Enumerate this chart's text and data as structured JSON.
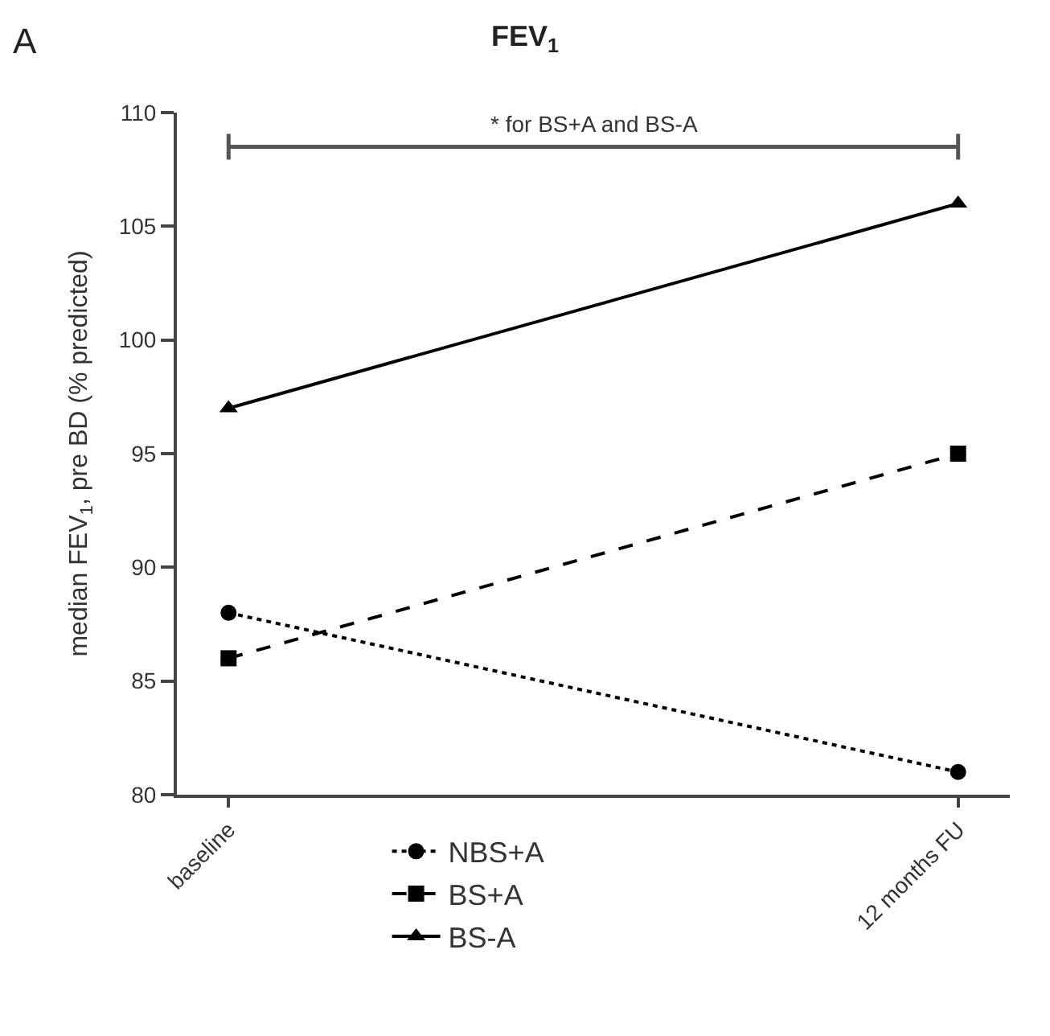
{
  "chart_data": {
    "type": "line",
    "title": "FEV$_{1}$",
    "ylabel": "median FEV$_{1}$, pre BD (% predicted)",
    "annotations": [
      "A"
    ],
    "ref_lines": [
      {
        "axis": "y",
        "value": 108.5,
        "label": "* for BS+A and BS-A",
        "color": "#555555"
      }
    ],
    "categories": [
      "baseline",
      "12 months FU"
    ],
    "series": [
      {
        "name": "NBS+A",
        "color": "#000000",
        "values": [
          88,
          81
        ],
        "marker": "circle",
        "line_style": "dotted"
      },
      {
        "name": "BS+A",
        "color": "#000000",
        "values": [
          86,
          95
        ],
        "marker": "square",
        "line_style": "dashed"
      },
      {
        "name": "BS-A",
        "color": "#000000",
        "values": [
          97,
          106
        ],
        "marker": "triangle",
        "line_style": "solid"
      }
    ],
    "ylim": [
      80,
      110
    ],
    "yticks": [
      80,
      85,
      90,
      95,
      100,
      105,
      110
    ],
    "legend": "bottom"
  }
}
